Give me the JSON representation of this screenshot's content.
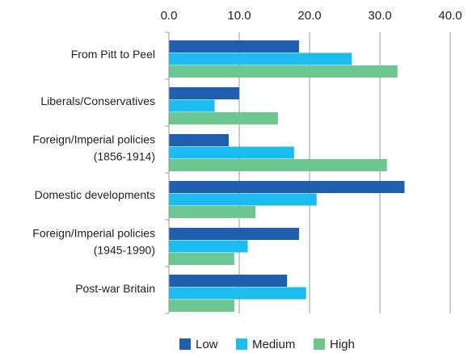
{
  "chart_data": {
    "type": "bar",
    "orientation": "horizontal",
    "categories": [
      "From Pitt to Peel",
      "Liberals/Conservatives",
      [
        "Foreign/Imperial policies",
        "(1856-1914)"
      ],
      "Domestic developments",
      [
        "Foreign/Imperial policies",
        "(1945-1990)"
      ],
      "Post-war Britain"
    ],
    "series": [
      {
        "name": "Low",
        "color": "#1f5fae",
        "values": [
          18.5,
          10.0,
          8.5,
          33.5,
          18.5,
          16.8
        ]
      },
      {
        "name": "Medium",
        "color": "#1cbcf0",
        "values": [
          26.0,
          6.5,
          17.8,
          21.0,
          11.2,
          19.5
        ]
      },
      {
        "name": "High",
        "color": "#6cc790",
        "values": [
          32.5,
          15.5,
          31.0,
          12.3,
          9.3,
          9.3
        ]
      }
    ],
    "x_ticks": [
      "0.0",
      "10.0",
      "20.0",
      "30.0",
      "40.0"
    ],
    "xlim": [
      0,
      40
    ],
    "grid": true,
    "legend_position": "bottom",
    "axis_position": "top"
  }
}
